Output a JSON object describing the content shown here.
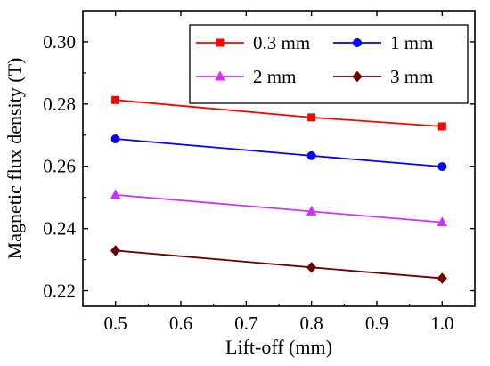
{
  "chart_data": {
    "type": "line",
    "title": "",
    "xlabel": "Lift-off (mm)",
    "ylabel": "Magnetic flux density (T)",
    "xlim": [
      0.45,
      1.05
    ],
    "ylim": [
      0.215,
      0.31
    ],
    "xticks": [
      "0.5",
      "0.6",
      "0.7",
      "0.8",
      "0.9",
      "1.0"
    ],
    "yticks": [
      "0.22",
      "0.24",
      "0.26",
      "0.28",
      "0.30"
    ],
    "grid": false,
    "legend_position": "top-right",
    "x": [
      0.5,
      0.8,
      1.0
    ],
    "series": [
      {
        "name": "0.3 mm",
        "values": [
          0.2813,
          0.2757,
          0.2728
        ],
        "color": "#ff0000",
        "marker": "square"
      },
      {
        "name": "1 mm",
        "values": [
          0.2688,
          0.2634,
          0.2599
        ],
        "color": "#0000ff",
        "marker": "circle"
      },
      {
        "name": "2 mm",
        "values": [
          0.2508,
          0.2455,
          0.242
        ],
        "color": "#cc33ff",
        "marker": "triangle"
      },
      {
        "name": "3 mm",
        "values": [
          0.2329,
          0.2275,
          0.224
        ],
        "color": "#6b0000",
        "marker": "diamond"
      }
    ]
  }
}
